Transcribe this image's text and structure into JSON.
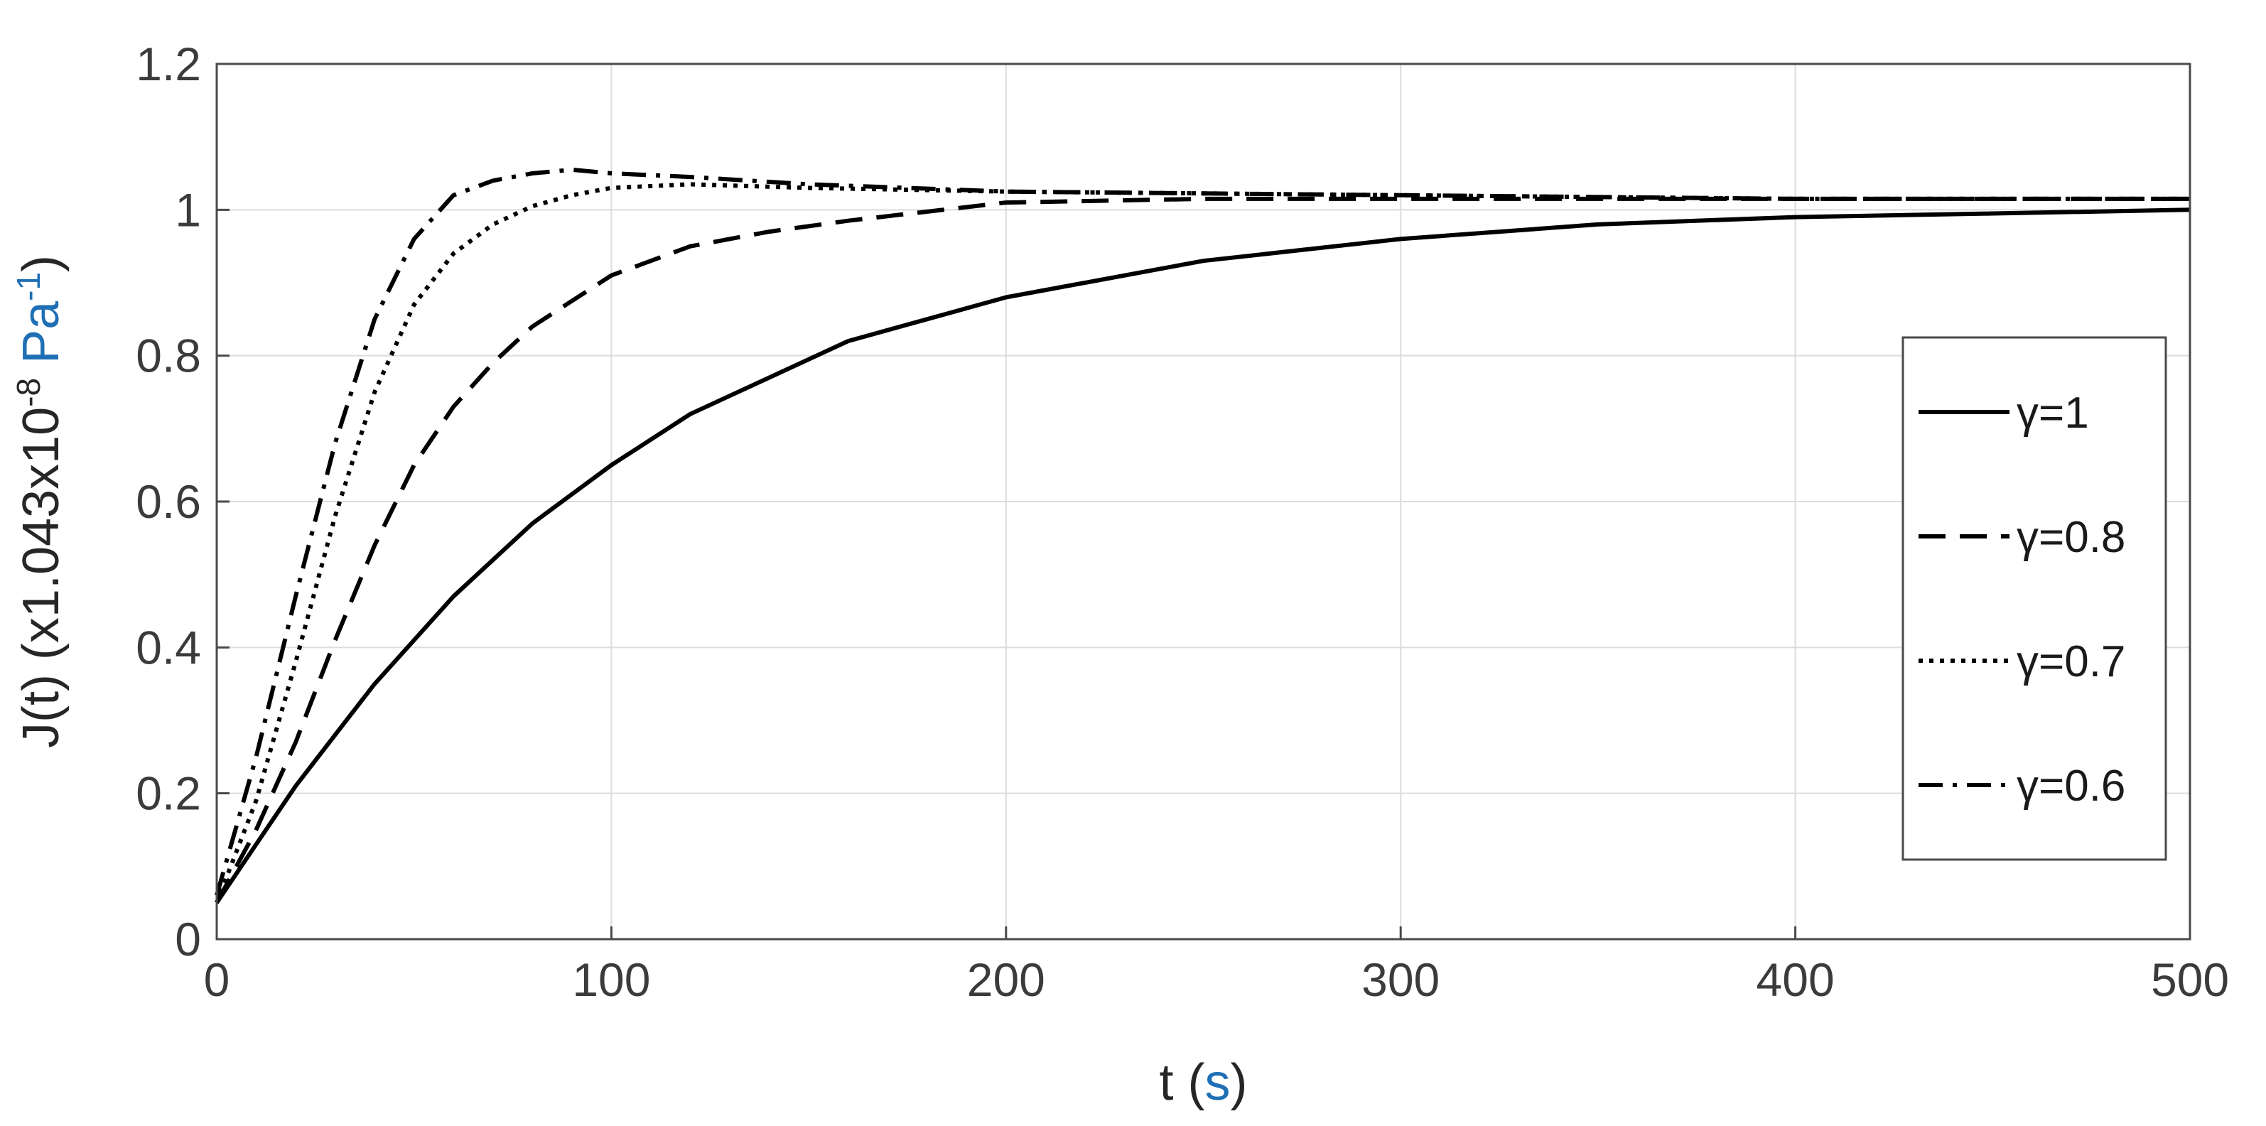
{
  "chart_data": {
    "type": "line",
    "xlabel": "t",
    "xlabel_unit": "s",
    "ylabel_prefix": "J(t) (x1.043x10",
    "ylabel_exp": "-8",
    "ylabel_mid": " Pa",
    "ylabel_exp2": "-1",
    "ylabel_suffix": ")",
    "xlim": [
      0,
      500
    ],
    "ylim": [
      0,
      1.2
    ],
    "x_ticks": [
      0,
      100,
      200,
      300,
      400,
      500
    ],
    "y_ticks": [
      0,
      0.2,
      0.4,
      0.6,
      0.8,
      1,
      1.2
    ],
    "x_tick_labels": [
      "0",
      "100",
      "200",
      "300",
      "400",
      "500"
    ],
    "y_tick_labels": [
      "0",
      "0.2",
      "0.4",
      "0.6",
      "0.8",
      "1",
      "1.2"
    ],
    "grid": true,
    "legend_position": "right",
    "series": [
      {
        "name": "γ=1",
        "style": "solid",
        "x": [
          0,
          10,
          20,
          30,
          40,
          50,
          60,
          80,
          100,
          120,
          140,
          160,
          180,
          200,
          250,
          300,
          350,
          400,
          450,
          500
        ],
        "y": [
          0.05,
          0.13,
          0.21,
          0.28,
          0.35,
          0.41,
          0.47,
          0.57,
          0.65,
          0.72,
          0.77,
          0.82,
          0.85,
          0.88,
          0.93,
          0.96,
          0.98,
          0.99,
          0.995,
          1.0
        ]
      },
      {
        "name": "γ=0.8",
        "style": "dashed",
        "x": [
          0,
          10,
          20,
          30,
          40,
          50,
          60,
          70,
          80,
          100,
          120,
          140,
          160,
          200,
          250,
          300,
          400,
          500
        ],
        "y": [
          0.05,
          0.15,
          0.27,
          0.41,
          0.54,
          0.65,
          0.73,
          0.79,
          0.84,
          0.91,
          0.95,
          0.97,
          0.985,
          1.01,
          1.015,
          1.015,
          1.015,
          1.015
        ]
      },
      {
        "name": "γ=0.7",
        "style": "dotted",
        "x": [
          0,
          10,
          20,
          30,
          40,
          50,
          60,
          70,
          80,
          90,
          100,
          120,
          150,
          200,
          300,
          400,
          500
        ],
        "y": [
          0.05,
          0.19,
          0.38,
          0.58,
          0.75,
          0.87,
          0.94,
          0.98,
          1.005,
          1.02,
          1.03,
          1.035,
          1.03,
          1.025,
          1.02,
          1.015,
          1.015
        ]
      },
      {
        "name": "γ=0.6",
        "style": "dashdot",
        "x": [
          0,
          10,
          20,
          30,
          40,
          50,
          60,
          70,
          80,
          90,
          100,
          120,
          150,
          200,
          300,
          400,
          500
        ],
        "y": [
          0.06,
          0.25,
          0.47,
          0.68,
          0.85,
          0.96,
          1.02,
          1.04,
          1.05,
          1.055,
          1.05,
          1.045,
          1.035,
          1.025,
          1.02,
          1.015,
          1.015
        ]
      }
    ]
  }
}
